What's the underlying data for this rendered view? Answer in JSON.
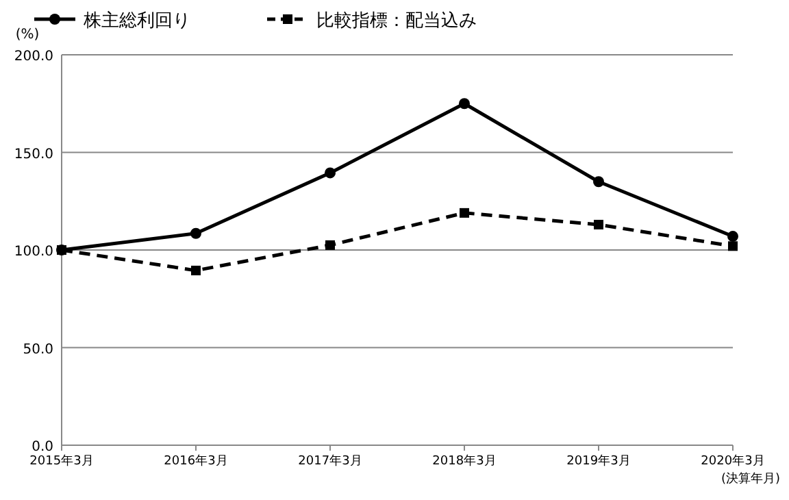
{
  "chart_data": {
    "type": "line",
    "ylabel": "(%)",
    "xlabel": "(決算年月)",
    "categories": [
      "2015年3月",
      "2016年3月",
      "2017年3月",
      "2018年3月",
      "2019年3月",
      "2020年3月"
    ],
    "series": [
      {
        "name": "株主総利回り",
        "color": "#000000",
        "marker": "circle",
        "line_style": "solid",
        "values": [
          100,
          108.5,
          139.5,
          175,
          135,
          107
        ]
      },
      {
        "name": "比較指標：配当込み",
        "color": "#000000",
        "marker": "square",
        "line_style": "dashed",
        "values": [
          100,
          89.5,
          102.5,
          119,
          113,
          102
        ]
      }
    ],
    "ylim": [
      0,
      200
    ],
    "yticks": [
      {
        "value": 0,
        "label": "0.0"
      },
      {
        "value": 50,
        "label": "50.0"
      },
      {
        "value": 100,
        "label": "100.0"
      },
      {
        "value": 150,
        "label": "150.0"
      },
      {
        "value": 200,
        "label": "200.0"
      }
    ],
    "grid": "y",
    "legend": "top left"
  }
}
